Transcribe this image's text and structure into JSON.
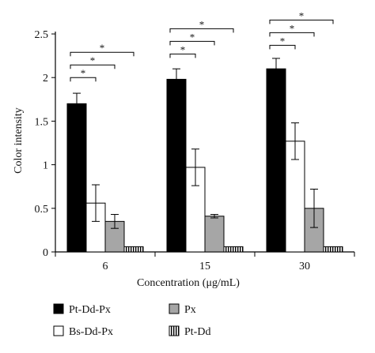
{
  "chart_data": {
    "type": "bar",
    "xlabel": "Concentration (μg/mL)",
    "ylabel": "Color intensity",
    "ylim": [
      0,
      2.5
    ],
    "yticks": [
      "0",
      "0.5",
      "1",
      "1.5",
      "2",
      "2.5"
    ],
    "categories": [
      "6",
      "15",
      "30"
    ],
    "legend_position": "bottom",
    "series": [
      {
        "name": "Pt-Dd-Px",
        "fill": "#000000",
        "pattern": "solid",
        "values": [
          1.7,
          1.98,
          2.1
        ],
        "errors": [
          0.12,
          0.12,
          0.12
        ]
      },
      {
        "name": "Bs-Dd-Px",
        "fill": "#ffffff",
        "pattern": "solid",
        "values": [
          0.56,
          0.97,
          1.27
        ],
        "errors": [
          0.21,
          0.21,
          0.21
        ]
      },
      {
        "name": "Px",
        "fill": "#a6a6a6",
        "pattern": "solid",
        "values": [
          0.35,
          0.41,
          0.5
        ],
        "errors": [
          0.08,
          0.02,
          0.22
        ]
      },
      {
        "name": "Pt-Dd",
        "fill": "#ffffff",
        "pattern": "vertical-stripes",
        "values": [
          0.06,
          0.06,
          0.06
        ],
        "errors": [
          0,
          0,
          0
        ]
      }
    ],
    "significance": {
      "marker": "*",
      "brackets": [
        {
          "group": 0,
          "from": 0,
          "to": 1
        },
        {
          "group": 0,
          "from": 0,
          "to": 2
        },
        {
          "group": 0,
          "from": 0,
          "to": 3
        },
        {
          "group": 1,
          "from": 0,
          "to": 1
        },
        {
          "group": 1,
          "from": 0,
          "to": 2
        },
        {
          "group": 1,
          "from": 0,
          "to": 3
        },
        {
          "group": 2,
          "from": 0,
          "to": 1
        },
        {
          "group": 2,
          "from": 0,
          "to": 2
        },
        {
          "group": 2,
          "from": 0,
          "to": 3
        }
      ]
    }
  }
}
